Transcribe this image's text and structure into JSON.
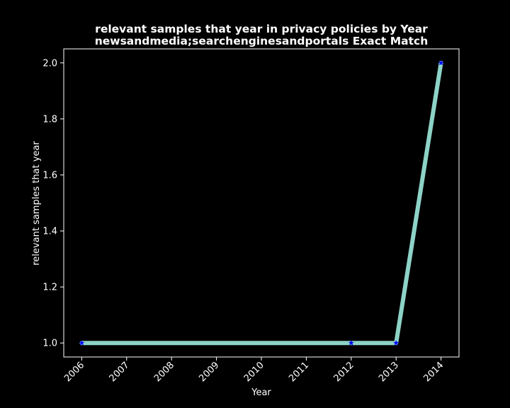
{
  "chart_data": {
    "type": "line",
    "title": "relevant samples that year in privacy policies by Year",
    "subtitle": "newsandmedia;searchenginesandportals Exact Match",
    "xlabel": "Year",
    "ylabel": "relevant samples that year",
    "x_ticks": [
      2006,
      2007,
      2008,
      2009,
      2010,
      2011,
      2012,
      2013,
      2014
    ],
    "y_ticks": [
      "1.0",
      "1.2",
      "1.4",
      "1.6",
      "1.8",
      "2.0"
    ],
    "xlim": [
      2005.6,
      2014.4
    ],
    "ylim": [
      0.95,
      2.05
    ],
    "grid": false,
    "series": [
      {
        "x": [
          2006,
          2012,
          2013,
          2014
        ],
        "y": [
          1,
          1,
          1,
          2
        ],
        "line_color": "#8dd3c7",
        "marker_color": "#0000ff",
        "marker": "star"
      }
    ],
    "background_color": "#000000",
    "text_color": "#ffffff"
  }
}
